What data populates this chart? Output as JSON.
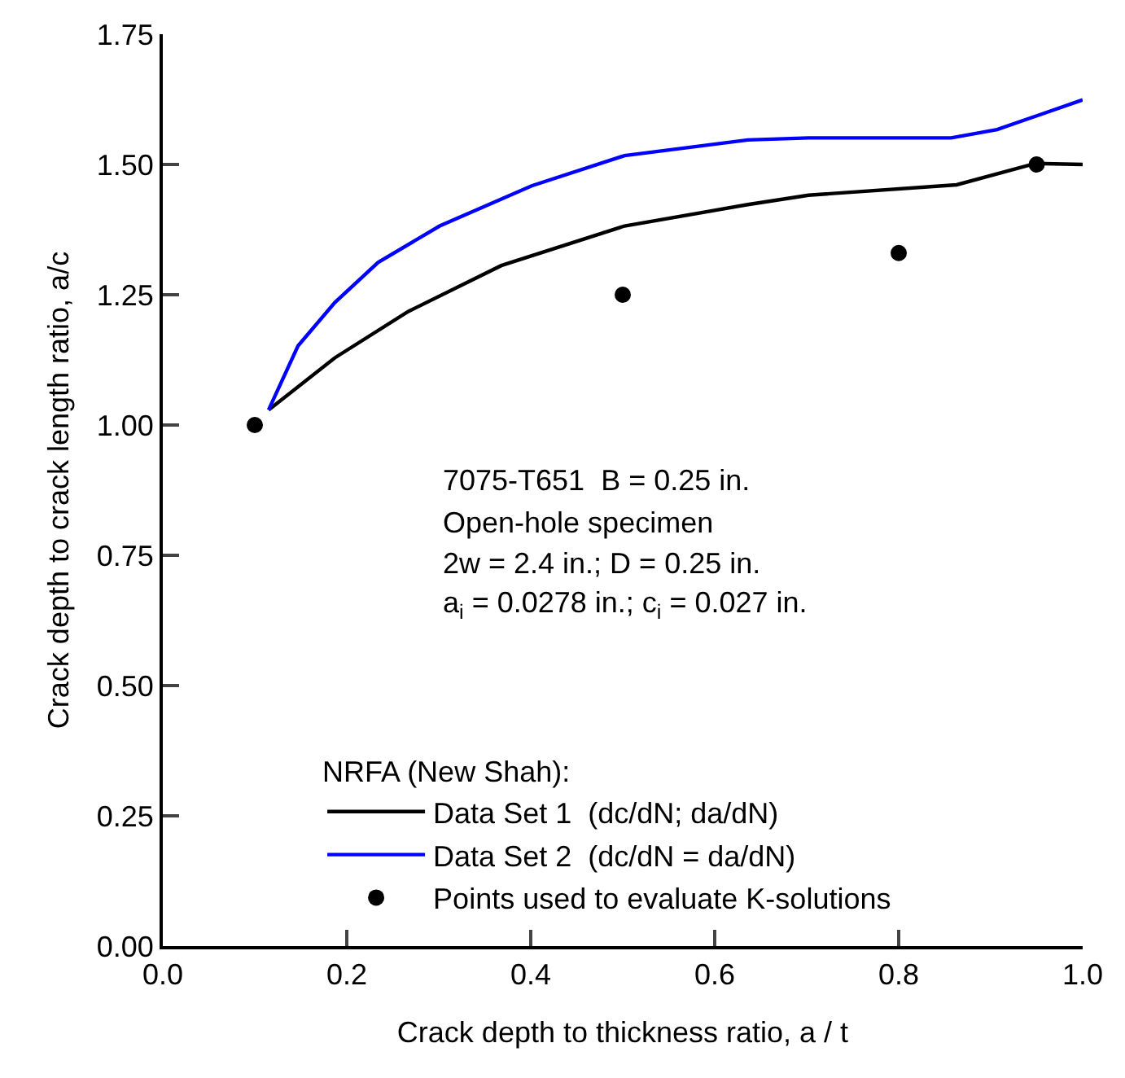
{
  "chart_data": {
    "type": "line",
    "xlabel": "Crack depth to thickness ratio, a / t",
    "ylabel": "Crack depth to crack length ratio, a/c",
    "legend_title": "NRFA (New Shah):",
    "annotations": [
      "7075-T651  B = 0.25 in.",
      "Open-hole specimen",
      "2w = 2.4 in.; D = 0.25 in.",
      "a$_{i}$ = 0.0278 in.; c$_{i}$ = 0.027 in."
    ],
    "series": [
      {
        "name": "Data Set 1  (dc/dN; da/dN)",
        "color": "#000000",
        "x": [
          0.115,
          0.187,
          0.267,
          0.368,
          0.502,
          0.636,
          0.702,
          0.863,
          0.949,
          1.0
        ],
        "values": [
          1.029,
          1.129,
          1.218,
          1.306,
          1.382,
          1.423,
          1.441,
          1.461,
          1.502,
          1.5
        ]
      },
      {
        "name": "Data Set 2  (dc/dN = da/dN)",
        "color": "#0000ff",
        "x": [
          0.115,
          0.147,
          0.187,
          0.234,
          0.301,
          0.401,
          0.502,
          0.636,
          0.702,
          0.857,
          0.907,
          1.0
        ],
        "values": [
          1.029,
          1.152,
          1.235,
          1.312,
          1.382,
          1.459,
          1.517,
          1.547,
          1.551,
          1.551,
          1.567,
          1.624
        ]
      },
      {
        "name": "Points used to evaluate K-solutions",
        "color": "#000000",
        "type": "scatter",
        "marker": "circle",
        "x": [
          0.1,
          0.5,
          0.8,
          0.95
        ],
        "values": [
          1.0,
          1.25,
          1.33,
          1.5
        ]
      }
    ],
    "xlim": [
      0.0,
      1.0
    ],
    "xticks": [
      {
        "value": 0.0,
        "label": "0.0"
      },
      0.2,
      0.4,
      0.6,
      0.8,
      {
        "value": 1.0,
        "label": "1.0"
      }
    ],
    "ylim": [
      0.0,
      1.75
    ],
    "yticks": [
      {
        "value": 0.0,
        "label": "0.00"
      },
      0.25,
      {
        "value": 0.5,
        "label": "0.50"
      },
      0.75,
      {
        "value": 1.0,
        "label": "1.00"
      },
      1.25,
      {
        "value": 1.5,
        "label": "1.50"
      },
      1.75
    ],
    "legend": "bottom right"
  }
}
